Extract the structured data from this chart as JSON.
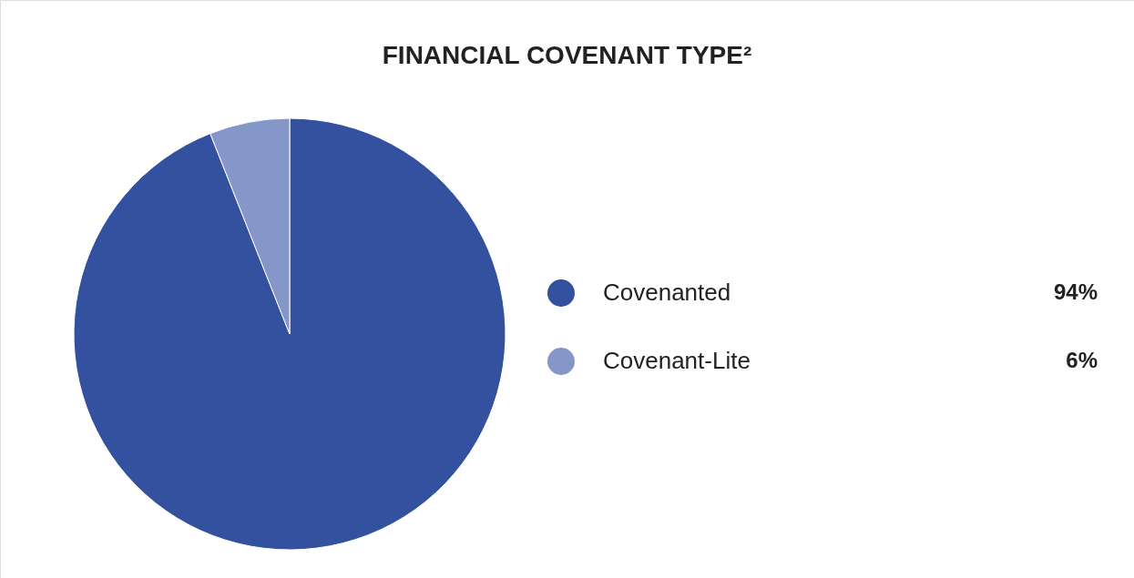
{
  "chart_data": {
    "type": "pie",
    "title": "FINANCIAL COVENANT TYPE²",
    "categories": [
      "Covenanted",
      "Covenant-Lite"
    ],
    "values": [
      94,
      6
    ],
    "colors": [
      "#3451a0",
      "#8596c8"
    ],
    "value_labels": [
      "94%",
      "6%"
    ],
    "legend": "right"
  }
}
